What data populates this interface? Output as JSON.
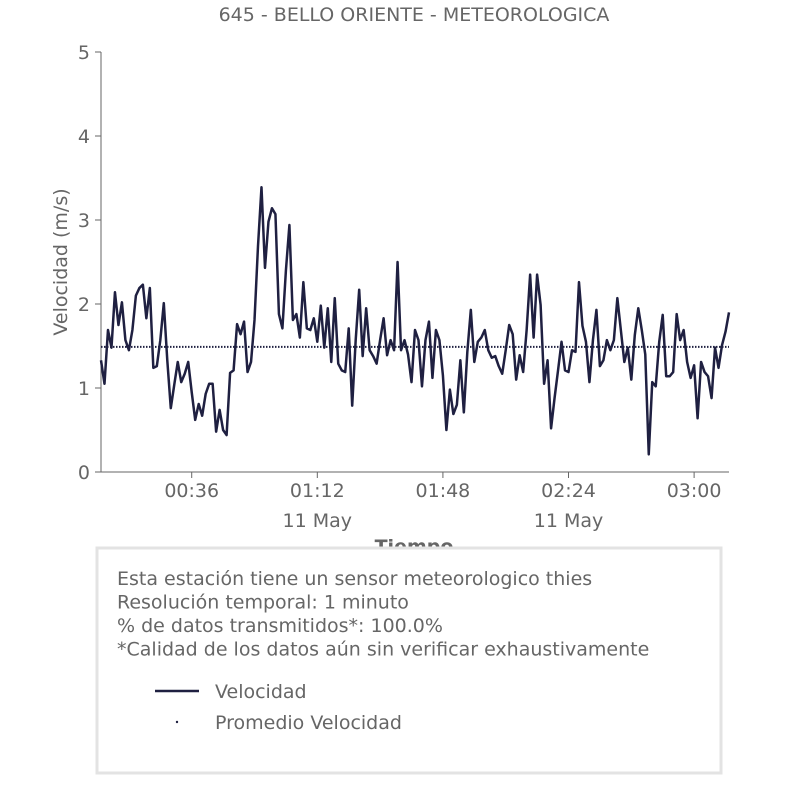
{
  "chart_data": {
    "type": "line",
    "title": "645 - BELLO ORIENTE - METEOROLOGICA",
    "x_label": "Tiempo",
    "y_label": "Velocidad (m/s)",
    "x": [
      "00:10",
      "00:11",
      "00:12",
      "00:13",
      "00:14",
      "00:15",
      "00:16",
      "00:17",
      "00:18",
      "00:19",
      "00:20",
      "00:21",
      "00:22",
      "00:23",
      "00:24",
      "00:25",
      "00:26",
      "00:27",
      "00:28",
      "00:29",
      "00:30",
      "00:31",
      "00:32",
      "00:33",
      "00:34",
      "00:35",
      "00:36",
      "00:37",
      "00:38",
      "00:39",
      "00:40",
      "00:41",
      "00:42",
      "00:43",
      "00:44",
      "00:45",
      "00:46",
      "00:47",
      "00:48",
      "00:49",
      "00:50",
      "00:51",
      "00:52",
      "00:53",
      "00:54",
      "00:55",
      "00:56",
      "00:57",
      "00:58",
      "00:59",
      "01:00",
      "01:01",
      "01:02",
      "01:03",
      "01:04",
      "01:05",
      "01:06",
      "01:07",
      "01:08",
      "01:09",
      "01:10",
      "01:11",
      "01:12",
      "01:13",
      "01:14",
      "01:15",
      "01:16",
      "01:17",
      "01:18",
      "01:19",
      "01:20",
      "01:21",
      "01:22",
      "01:23",
      "01:24",
      "01:25",
      "01:26",
      "01:27",
      "01:28",
      "01:29",
      "01:30",
      "01:31",
      "01:32",
      "01:33",
      "01:34",
      "01:35",
      "01:36",
      "01:37",
      "01:38",
      "01:39",
      "01:40",
      "01:41",
      "01:42",
      "01:43",
      "01:44",
      "01:45",
      "01:46",
      "01:47",
      "01:48",
      "01:49",
      "01:50",
      "01:51",
      "01:52",
      "01:53",
      "01:54",
      "01:55",
      "01:56",
      "01:57",
      "01:58",
      "01:59",
      "02:00",
      "02:01",
      "02:02",
      "02:03",
      "02:04",
      "02:05",
      "02:06",
      "02:07",
      "02:08",
      "02:09",
      "02:10",
      "02:11",
      "02:12",
      "02:13",
      "02:14",
      "02:15",
      "02:16",
      "02:17",
      "02:18",
      "02:19",
      "02:20",
      "02:21",
      "02:22",
      "02:23",
      "02:24",
      "02:25",
      "02:26",
      "02:27",
      "02:28",
      "02:29",
      "02:30",
      "02:31",
      "02:32",
      "02:33",
      "02:34",
      "02:35",
      "02:36",
      "02:37",
      "02:38",
      "02:39",
      "02:40",
      "02:41",
      "02:42",
      "02:43",
      "02:44",
      "02:45",
      "02:46",
      "02:47",
      "02:48",
      "02:49",
      "02:50",
      "02:51",
      "02:52",
      "02:53",
      "02:54",
      "02:55",
      "02:56",
      "02:57",
      "02:58",
      "02:59",
      "03:00",
      "03:01",
      "03:02",
      "03:03",
      "03:04",
      "03:05",
      "03:06",
      "03:07",
      "03:08",
      "03:09",
      "03:10"
    ],
    "series": [
      {
        "name": "Velocidad",
        "color": "#1f2041",
        "values": [
          1.33,
          1.05,
          1.69,
          1.48,
          2.14,
          1.75,
          2.02,
          1.57,
          1.45,
          1.69,
          2.1,
          2.19,
          2.23,
          1.83,
          2.19,
          1.24,
          1.26,
          1.57,
          2.01,
          1.33,
          0.76,
          1.04,
          1.31,
          1.07,
          1.17,
          1.31,
          0.95,
          0.62,
          0.81,
          0.67,
          0.93,
          1.05,
          1.05,
          0.48,
          0.74,
          0.5,
          0.44,
          1.18,
          1.21,
          1.76,
          1.64,
          1.79,
          1.19,
          1.31,
          1.81,
          2.69,
          3.39,
          2.43,
          2.98,
          3.14,
          3.07,
          1.88,
          1.71,
          2.4,
          2.94,
          1.81,
          1.88,
          1.6,
          2.26,
          1.71,
          1.69,
          1.83,
          1.55,
          1.98,
          1.48,
          1.95,
          1.31,
          2.07,
          1.29,
          1.21,
          1.19,
          1.71,
          0.79,
          1.57,
          2.17,
          1.38,
          1.95,
          1.45,
          1.38,
          1.29,
          1.57,
          1.83,
          1.39,
          1.57,
          1.45,
          2.5,
          1.45,
          1.57,
          1.4,
          1.07,
          1.69,
          1.57,
          1.02,
          1.57,
          1.79,
          1.12,
          1.69,
          1.57,
          1.15,
          0.5,
          0.98,
          0.69,
          0.8,
          1.33,
          0.71,
          1.43,
          1.93,
          1.31,
          1.55,
          1.6,
          1.69,
          1.45,
          1.36,
          1.38,
          1.26,
          1.17,
          1.45,
          1.75,
          1.64,
          1.1,
          1.39,
          1.19,
          1.69,
          2.35,
          1.6,
          2.35,
          1.99,
          1.05,
          1.33,
          0.52,
          0.88,
          1.21,
          1.55,
          1.21,
          1.19,
          1.45,
          1.43,
          2.26,
          1.74,
          1.55,
          1.07,
          1.57,
          1.93,
          1.26,
          1.33,
          1.57,
          1.45,
          1.57,
          2.07,
          1.69,
          1.31,
          1.48,
          1.1,
          1.63,
          1.95,
          1.69,
          1.4,
          0.21,
          1.07,
          1.02,
          1.55,
          1.87,
          1.14,
          1.14,
          1.19,
          1.88,
          1.57,
          1.69,
          1.31,
          1.12,
          1.27,
          0.64,
          1.31,
          1.19,
          1.14,
          0.88,
          1.48,
          1.24,
          1.51,
          1.67,
          1.9
        ]
      },
      {
        "name": "Promedio Velocidad",
        "color": "#1f2041",
        "value": 1.49,
        "line_style": "dotted"
      }
    ],
    "xlim": [
      "00:10",
      "03:10"
    ],
    "xticks": [
      "00:36",
      {
        "value": "01:12",
        "label": "01:12\n11 May"
      },
      "01:48",
      {
        "value": "02:24",
        "label": "02:24\n11 May"
      },
      "03:00"
    ],
    "ylim": [
      0,
      5
    ],
    "yticks": [
      0,
      1,
      2,
      3,
      4,
      5
    ],
    "notes": [
      "Esta estación tiene un sensor meteorologico thies",
      "Resolución temporal: 1 minuto",
      "% de datos transmitidos*: 100.0%",
      "*Calidad de los datos aún sin verificar exhaustivamente"
    ]
  }
}
